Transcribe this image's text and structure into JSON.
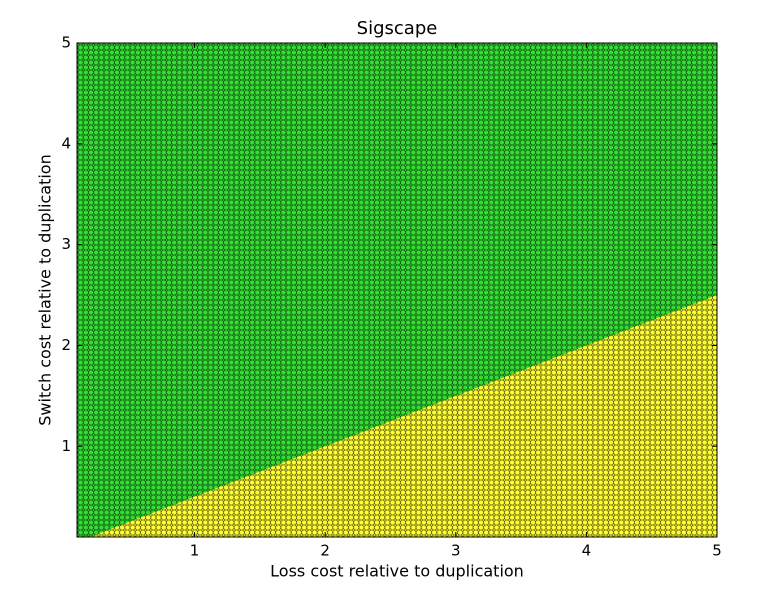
{
  "chart_data": {
    "type": "area",
    "title": "Sigscape",
    "x_label": "Loss cost relative to duplication",
    "y_label": "Switch cost relative to duplication",
    "x": [
      0.1,
      5
    ],
    "series": [
      {
        "color": "#ffff33",
        "values": [
          0.05,
          2.5
        ]
      }
    ],
    "color_above": "#33dd33",
    "xlim": [
      0.1,
      5
    ],
    "ylim": [
      0.1,
      5
    ],
    "xticks": [
      1,
      2,
      3,
      4,
      5
    ],
    "yticks": [
      1,
      2,
      3,
      4,
      5
    ],
    "grid": false
  }
}
